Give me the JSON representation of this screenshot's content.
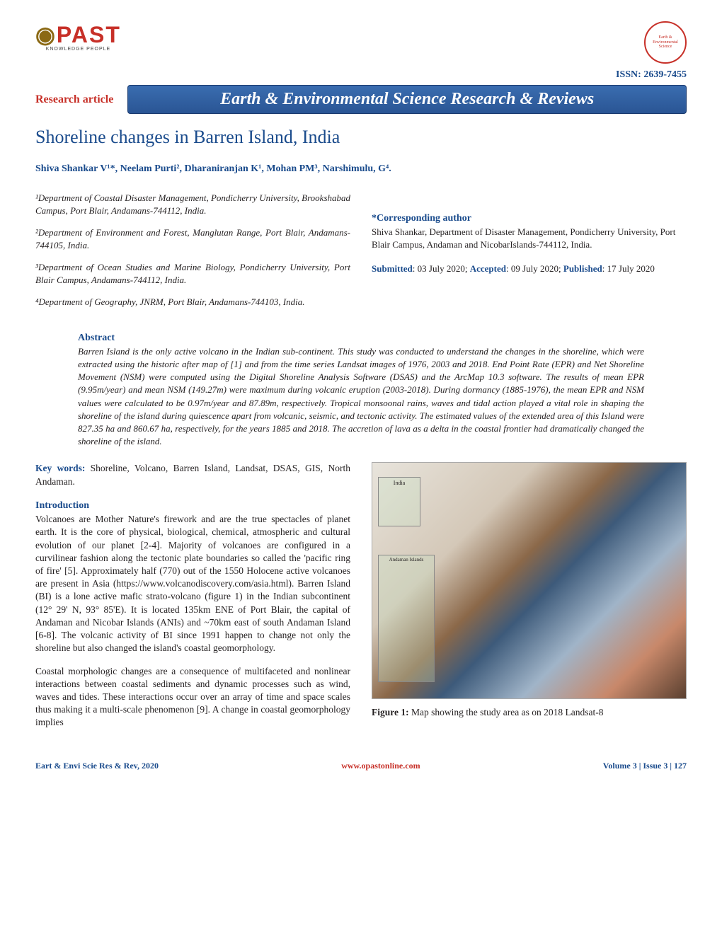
{
  "header": {
    "logo_text": "PAST",
    "logo_subtitle": "KNOWLEDGE PEOPLE",
    "issn": "ISSN: 2639-7455"
  },
  "banner": {
    "article_type": "Research article",
    "journal_name": "Earth & Environmental Science Research & Reviews"
  },
  "title": "Shoreline changes in Barren Island, India",
  "authors": "Shiva Shankar V¹*, Neelam Purti², Dharaniranjan K¹, Mohan PM³, Narshimulu, G⁴.",
  "affiliations": {
    "a1": "¹Department of Coastal Disaster Management, Pondicherry University, Brookshabad Campus, Port Blair, Andamans-744112, India.",
    "a2": "²Department of Environment and Forest, Manglutan Range, Port Blair, Andamans-744105, India.",
    "a3": "³Department of Ocean Studies and Marine Biology, Pondicherry University, Port Blair Campus, Andamans-744112, India.",
    "a4": "⁴Department of Geography, JNRM, Port Blair, Andamans-744103, India."
  },
  "corresponding": {
    "heading": "*Corresponding author",
    "text": "Shiva Shankar, Department of Disaster Management, Pondicherry University, Port Blair Campus, Andaman and NicobarIslands-744112, India."
  },
  "dates": {
    "submitted_label": "Submitted",
    "submitted": ": 03 July 2020; ",
    "accepted_label": "Accepted",
    "accepted": ": 09 July 2020; ",
    "published_label": "Published",
    "published": ": 17 July 2020"
  },
  "abstract": {
    "heading": "Abstract",
    "text": "Barren Island is the only active volcano in the Indian sub-continent. This study was conducted to understand the changes in the shoreline, which were extracted using the historic after map of [1] and from the time series Landsat images of 1976, 2003 and 2018. End Point Rate (EPR) and Net Shoreline Movement (NSM) were computed using the Digital Shoreline Analysis Software (DSAS) and the ArcMap 10.3 software. The results of mean EPR (9.95m/year) and mean NSM (149.27m) were maximum during volcanic eruption (2003-2018). During dormancy (1885-1976), the mean EPR and NSM values were calculated to be 0.97m/year and 87.89m, respectively. Tropical monsoonal rains, waves and tidal action played a vital role in shaping the shoreline of the island during quiescence apart from volcanic, seismic, and tectonic activity. The estimated values of the extended area of this Island were 827.35 ha and 860.67 ha, respectively, for the years 1885 and 2018. The accretion of lava as a delta in the coastal frontier had dramatically changed the shoreline of the island."
  },
  "keywords": {
    "label": "Key words:",
    "text": " Shoreline, Volcano, Barren Island, Landsat, DSAS, GIS, North Andaman."
  },
  "introduction": {
    "heading": "Introduction",
    "p1": "Volcanoes are Mother Nature's firework and are the true spectacles of planet earth. It is the core of physical, biological, chemical, atmospheric and cultural evolution of our planet [2-4]. Majority of volcanoes are configured in a curvilinear fashion along the tectonic plate boundaries so called the 'pacific ring of fire' [5]. Approximately half (770) out of the 1550 Holocene active volcanoes are present in Asia (https://www.volcanodiscovery.com/asia.html). Barren Island (BI) is a lone active mafic strato-volcano (figure 1) in the Indian subcontinent (12° 29' N, 93° 85'E). It is located 135km ENE of Port Blair, the capital of Andaman and Nicobar Islands (ANIs) and ~70km east of south Andaman Island [6-8]. The volcanic activity of BI since 1991 happen to change not only the shoreline but also changed the island's coastal geomorphology.",
    "p2": "Coastal morphologic changes are a consequence of multifaceted and nonlinear interactions between coastal sediments and dynamic processes such as wind, waves and tides. These interactions occur over an array of time and space scales thus making it a multi-scale phenomenon [9]. A change in coastal geomorphology implies"
  },
  "figure": {
    "inset1": "India",
    "inset2": "Andaman Islands",
    "label": "Figure 1:",
    "caption": " Map showing the study area as on 2018 Landsat-8",
    "map_colors": {
      "background": "#e8e4dc",
      "terrain_brown": "#8b6849",
      "crater_blue": "#3d5a7a",
      "lava_orange": "#c8886a",
      "dark_rock": "#5a4030",
      "water": "#a0b4c8"
    }
  },
  "footer": {
    "left": "Eart & Envi Scie Res & Rev, 2020",
    "center": "www.opastonline.com",
    "right": "Volume 3 | Issue 3 | 127"
  },
  "colors": {
    "blue": "#1a4b8c",
    "red": "#c73028",
    "banner_grad_top": "#3a6db0",
    "banner_grad_bottom": "#2a5594"
  }
}
